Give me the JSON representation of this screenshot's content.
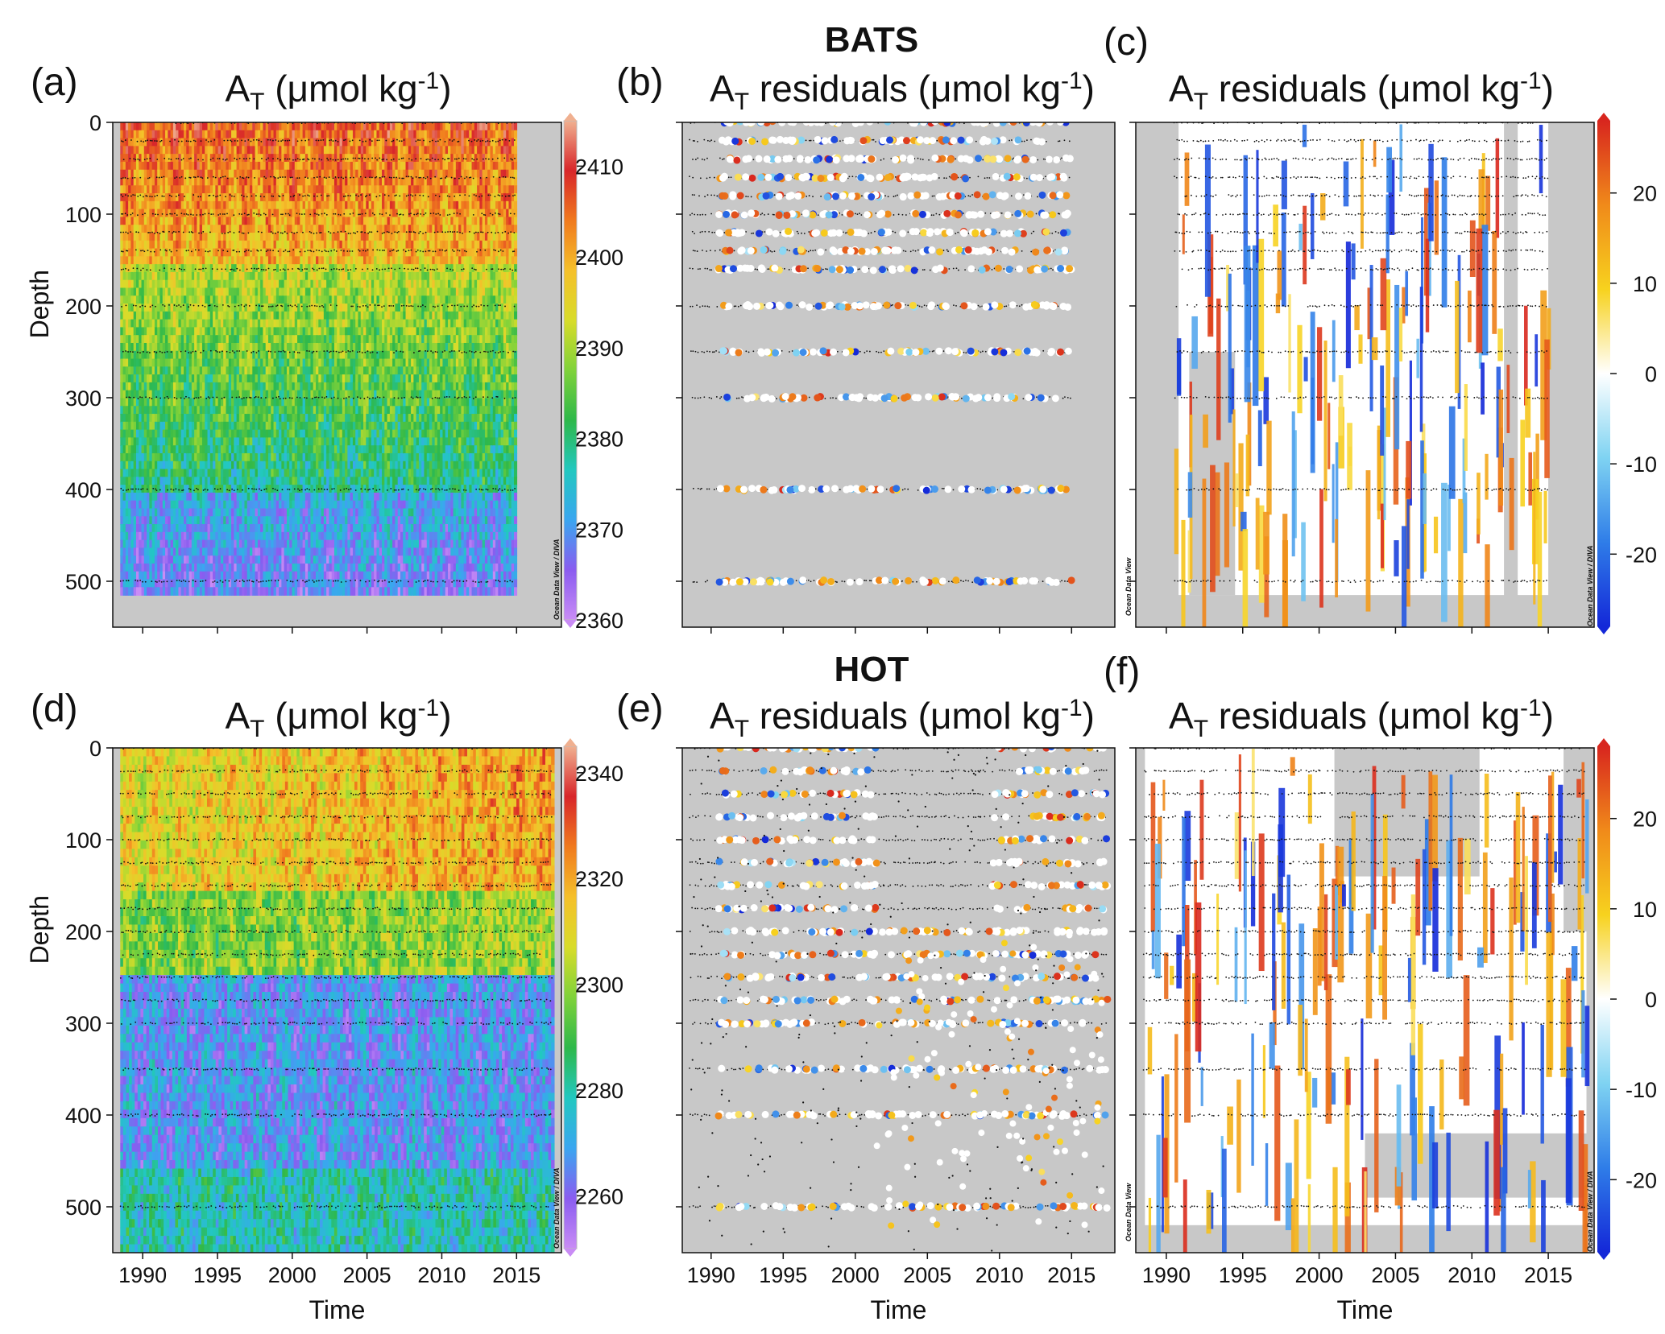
{
  "groups": {
    "top": "BATS",
    "bottom": "HOT"
  },
  "watermarks": {
    "diva": "Ocean Data View / DIVA",
    "odv": "Ocean Data View"
  },
  "axes": {
    "xlabel": "Time",
    "ylabel": "Depth"
  },
  "colors": {
    "background_gray": "#c8c8c8",
    "abs_scale": [
      "#c98cf5",
      "#8a5cf0",
      "#3aa6f0",
      "#22c8c0",
      "#2eb84a",
      "#7fd23a",
      "#d8dc2a",
      "#f5c02a",
      "#f07a1e",
      "#d8262a",
      "#f0b090"
    ],
    "res_scale": [
      "#1428d8",
      "#2f7de8",
      "#7fd3f2",
      "#ffffff",
      "#f7d21e",
      "#f08a1a",
      "#d8261e"
    ]
  },
  "chart_data": [
    {
      "id": "a",
      "panel_label": "(a)",
      "type": "heatmap",
      "title": {
        "base": "A",
        "sub": "T",
        "unit": " (μmol kg",
        "sup": "-1",
        "close": ")"
      },
      "ylabel": "Depth",
      "xlabel": "",
      "ylim": [
        550,
        0
      ],
      "xlim": [
        1988,
        2018
      ],
      "yticks": [
        "0",
        "100",
        "200",
        "300",
        "400",
        "500"
      ],
      "colorbar": {
        "range": [
          2360,
          2415
        ],
        "ticks": [
          "2410",
          "2400",
          "2390",
          "2380",
          "2370",
          "2360"
        ]
      },
      "sample_depths": [
        0,
        20,
        40,
        60,
        80,
        100,
        120,
        140,
        160,
        200,
        250,
        300,
        400,
        500
      ],
      "data_span": [
        1988.5,
        2015
      ]
    },
    {
      "id": "b",
      "panel_label": "(b)",
      "type": "scatter",
      "title": {
        "base": "A",
        "sub": "T",
        "unit": " residuals (μmol kg",
        "sup": "-1",
        "close": ")"
      },
      "ylim": [
        550,
        0
      ],
      "xlim": [
        1988,
        2018
      ],
      "sample_depths": [
        0,
        20,
        40,
        60,
        80,
        100,
        120,
        140,
        160,
        200,
        250,
        300,
        400,
        500
      ],
      "data_span": [
        1988.5,
        2015
      ]
    },
    {
      "id": "c",
      "panel_label": "(c)",
      "type": "heatmap",
      "title": {
        "base": "A",
        "sub": "T",
        "unit": " residuals (μmol kg",
        "sup": "-1",
        "close": ")"
      },
      "ylim": [
        550,
        0
      ],
      "xlim": [
        1988,
        2018
      ],
      "colorbar": {
        "range": [
          -28,
          28
        ],
        "ticks": [
          "20",
          "10",
          "0",
          "-10",
          "-20"
        ]
      },
      "sample_depths": [
        0,
        20,
        40,
        60,
        80,
        100,
        120,
        140,
        160,
        200,
        250,
        300,
        400,
        500
      ],
      "data_span": [
        1990.5,
        2015
      ]
    },
    {
      "id": "d",
      "panel_label": "(d)",
      "type": "heatmap",
      "title": {
        "base": "A",
        "sub": "T",
        "unit": " (μmol kg",
        "sup": "-1",
        "close": ")"
      },
      "ylabel": "Depth",
      "xlabel": "Time",
      "ylim": [
        550,
        0
      ],
      "xlim": [
        1988,
        2018
      ],
      "yticks": [
        "0",
        "100",
        "200",
        "300",
        "400",
        "500"
      ],
      "xticks": [
        "1990",
        "1995",
        "2000",
        "2005",
        "2010",
        "2015"
      ],
      "colorbar": {
        "range": [
          2250,
          2345
        ],
        "ticks": [
          "2340",
          "2320",
          "2300",
          "2280",
          "2260"
        ]
      },
      "sample_depths": [
        0,
        25,
        50,
        75,
        100,
        125,
        150,
        175,
        200,
        225,
        250,
        275,
        300,
        350,
        400,
        500
      ],
      "data_span": [
        1988.5,
        2017.5
      ]
    },
    {
      "id": "e",
      "panel_label": "(e)",
      "type": "scatter",
      "title": {
        "base": "A",
        "sub": "T",
        "unit": " residuals (μmol kg",
        "sup": "-1",
        "close": ")"
      },
      "xlabel": "Time",
      "ylim": [
        550,
        0
      ],
      "xlim": [
        1988,
        2018
      ],
      "xticks": [
        "1990",
        "1995",
        "2000",
        "2005",
        "2010",
        "2015"
      ],
      "sample_depths": [
        0,
        25,
        50,
        75,
        100,
        125,
        150,
        175,
        200,
        225,
        250,
        275,
        300,
        350,
        400,
        500
      ],
      "data_span": [
        1988.5,
        2017.5
      ]
    },
    {
      "id": "f",
      "panel_label": "(f)",
      "type": "heatmap",
      "title": {
        "base": "A",
        "sub": "T",
        "unit": " residuals (μmol kg",
        "sup": "-1",
        "close": ")"
      },
      "xlabel": "Time",
      "ylim": [
        550,
        0
      ],
      "xlim": [
        1988,
        2018
      ],
      "xticks": [
        "1990",
        "1995",
        "2000",
        "2005",
        "2010",
        "2015"
      ],
      "colorbar": {
        "range": [
          -28,
          28
        ],
        "ticks": [
          "20",
          "10",
          "0",
          "-10",
          "-20"
        ]
      },
      "sample_depths": [
        0,
        25,
        50,
        75,
        100,
        125,
        150,
        175,
        200,
        225,
        250,
        275,
        300,
        350,
        400,
        500
      ],
      "data_span": [
        1988.5,
        2017.5
      ]
    }
  ]
}
